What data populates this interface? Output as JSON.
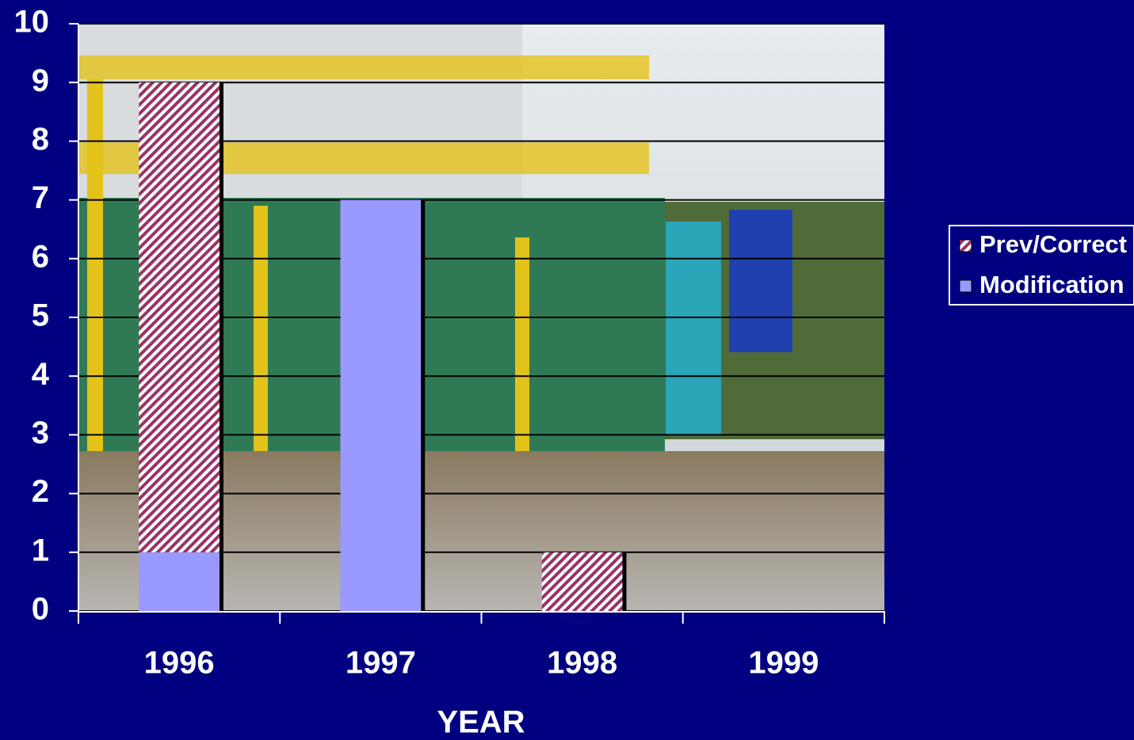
{
  "chart_data": {
    "type": "stacked-bar",
    "x_label": "YEAR",
    "categories": [
      "1996",
      "1997",
      "1998",
      "1999"
    ],
    "series": [
      {
        "name": "Prev/Correct",
        "color": "#993366",
        "pattern": "hatch",
        "values": [
          8,
          0,
          1,
          0
        ]
      },
      {
        "name": "Modification",
        "color": "#9999ff",
        "values": [
          1,
          7,
          0,
          0
        ]
      }
    ],
    "stack_order": [
      1,
      0
    ],
    "ylim": [
      0,
      10
    ],
    "yticks": [
      0,
      1,
      2,
      3,
      4,
      5,
      6,
      7,
      8,
      9,
      10
    ],
    "grid": true
  }
}
